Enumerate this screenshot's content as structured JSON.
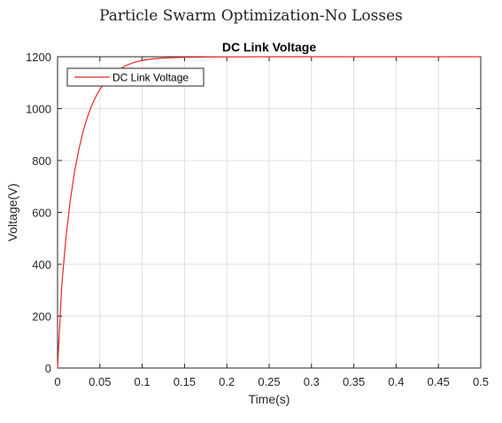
{
  "figure_title": "Particle Swarm Optimization-No Losses",
  "colors": {
    "series": "#e8262b",
    "grid": "#dfdfdf",
    "axis": "#262626"
  },
  "chart_data": {
    "type": "line",
    "title": "DC Link Voltage",
    "xlabel": "Time(s)",
    "ylabel": "Voltage(V)",
    "xlim": [
      0,
      0.5
    ],
    "ylim": [
      0,
      1200
    ],
    "xticks": [
      0,
      0.05,
      0.1,
      0.15,
      0.2,
      0.25,
      0.3,
      0.35,
      0.4,
      0.45,
      0.5
    ],
    "xtick_labels": [
      "0",
      "0.05",
      "0.1",
      "0.15",
      "0.2",
      "0.25",
      "0.3",
      "0.35",
      "0.4",
      "0.45",
      "0.5"
    ],
    "yticks": [
      0,
      200,
      400,
      600,
      800,
      1000,
      1200
    ],
    "ytick_labels": [
      "0",
      "200",
      "400",
      "600",
      "800",
      "1000",
      "1200"
    ],
    "grid": true,
    "legend": {
      "entries": [
        "DC Link Voltage"
      ],
      "location": "top-left"
    },
    "series": [
      {
        "name": "DC Link Voltage",
        "x": [
          0,
          0.005,
          0.01,
          0.015,
          0.02,
          0.025,
          0.03,
          0.035,
          0.04,
          0.045,
          0.05,
          0.06,
          0.07,
          0.08,
          0.09,
          0.1,
          0.11,
          0.12,
          0.13,
          0.14,
          0.15,
          0.175,
          0.2,
          0.25,
          0.3,
          0.35,
          0.4,
          0.45,
          0.5
        ],
        "y": [
          0,
          320,
          505,
          645,
          755,
          840,
          910,
          965,
          1010,
          1045,
          1075,
          1115,
          1145,
          1165,
          1178,
          1186,
          1191,
          1194,
          1196,
          1197,
          1198,
          1199,
          1199.5,
          1200,
          1200,
          1200,
          1200,
          1200,
          1200
        ]
      }
    ]
  }
}
